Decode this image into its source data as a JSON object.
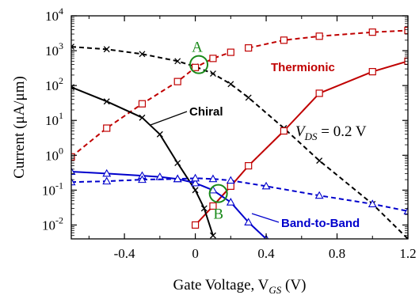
{
  "chart_data": {
    "type": "line",
    "xlabel": "Gate Voltage, V",
    "xlabel_sub": "GS",
    "xlabel_unit": " (V)",
    "ylabel": "Current (μA/μm)",
    "xlim": [
      -0.7,
      1.2
    ],
    "ylim": [
      0.004,
      10000
    ],
    "yscale": "log",
    "x_ticks": [
      -0.4,
      0,
      0.4,
      0.8,
      1.2
    ],
    "x_tick_labels": [
      "-0.4",
      "0",
      "0.4",
      "0.8",
      "1.2"
    ],
    "y_ticks": [
      0.01,
      0.1,
      1,
      10,
      100,
      1000,
      10000
    ],
    "y_tick_base": "10",
    "y_tick_exponents": [
      "-2",
      "-1",
      "0",
      "1",
      "2",
      "3",
      "4"
    ],
    "grid": false,
    "series": [
      {
        "key": "total",
        "color": "#000000",
        "dash": true,
        "marker": "x",
        "x": [
          -0.7,
          -0.5,
          -0.3,
          -0.1,
          0.0,
          0.1,
          0.2,
          0.3,
          0.5,
          0.7,
          1.0,
          1.2
        ],
        "y": [
          1300,
          1100,
          800,
          500,
          350,
          220,
          110,
          45,
          6,
          0.7,
          0.04,
          0.004
        ]
      },
      {
        "key": "thermionic",
        "color": "#c00000",
        "dash": true,
        "marker": "square",
        "x": [
          -0.7,
          -0.5,
          -0.3,
          -0.1,
          0.0,
          0.1,
          0.2
        ],
        "y": [
          0.9,
          6,
          30,
          130,
          330,
          600,
          900
        ]
      },
      {
        "key": "thermionic",
        "color": "#c00000",
        "dash": false,
        "marker": "square",
        "x": [
          0.0,
          0.1,
          0.2,
          0.3,
          0.5,
          0.7,
          1.0,
          1.2
        ],
        "y": [
          0.01,
          0.035,
          0.13,
          0.5,
          5,
          60,
          250,
          500
        ]
      },
      {
        "key": "thermionic",
        "color": "#c00000",
        "dash": true,
        "marker": "square",
        "x": [
          0.3,
          0.5,
          0.7,
          1.0,
          1.2
        ],
        "y": [
          1200,
          2000,
          2600,
          3400,
          3800
        ]
      },
      {
        "key": "chiral",
        "color": "#000000",
        "dash": false,
        "marker": "x",
        "x": [
          -0.7,
          -0.5,
          -0.3,
          -0.2,
          -0.1,
          0.0,
          0.05,
          0.1
        ],
        "y": [
          90,
          35,
          12,
          4,
          0.6,
          0.1,
          0.03,
          0.005
        ]
      },
      {
        "key": "b2b",
        "color": "#0000cc",
        "dash": false,
        "marker": "triangle",
        "x": [
          -0.7,
          -0.5,
          -0.3,
          -0.2,
          -0.1,
          0.0,
          0.1,
          0.2,
          0.3,
          0.4
        ],
        "y": [
          0.34,
          0.3,
          0.26,
          0.24,
          0.21,
          0.16,
          0.1,
          0.045,
          0.012,
          0.004
        ]
      },
      {
        "key": "b2b",
        "color": "#0000cc",
        "dash": true,
        "marker": "triangle",
        "x": [
          -0.7,
          -0.5,
          -0.3,
          -0.1,
          0.0,
          0.1,
          0.2,
          0.4,
          0.7,
          1.0,
          1.2
        ],
        "y": [
          0.17,
          0.18,
          0.2,
          0.21,
          0.22,
          0.21,
          0.19,
          0.13,
          0.07,
          0.04,
          0.025
        ]
      }
    ],
    "annotations": {
      "thermionic": {
        "text": "Thermionic",
        "color": "#c00000"
      },
      "chiral": {
        "text": "Chiral",
        "color": "#000000"
      },
      "b2b": {
        "text": "Band-to-Band",
        "color": "#0000cc"
      },
      "point_a": {
        "text": "A",
        "color": "#1a8a1a",
        "x": 0.02,
        "y": 400
      },
      "point_b": {
        "text": "B",
        "color": "#1a8a1a",
        "x": 0.13,
        "y": 0.08
      },
      "vds": {
        "prefix": "V",
        "sub": "DS",
        "value": " = 0.2 V"
      }
    }
  }
}
